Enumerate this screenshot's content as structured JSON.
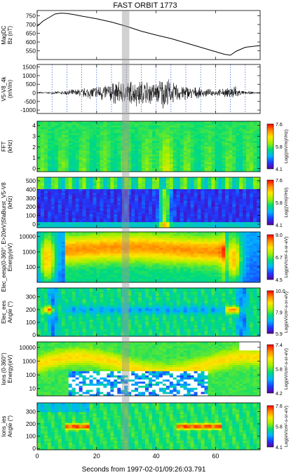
{
  "title": "FAST ORBIT 1773",
  "xaxis": {
    "label": "Seconds from 1997-02-01/09:26:03.791",
    "range": [
      0,
      75
    ],
    "ticks": [
      0,
      20,
      40,
      60
    ],
    "tick_labels": [
      "0",
      "20",
      "40",
      "60"
    ]
  },
  "highlight": {
    "x_range": [
      28.5,
      31
    ]
  },
  "colorbar_colors": [
    "#5a00a0",
    "#1e3cff",
    "#00b4ff",
    "#00dc78",
    "#a0f000",
    "#ffe600",
    "#ff8c00",
    "#ff0000"
  ],
  "chart_data": [
    {
      "type": "line",
      "ylabel": [
        "MagDC",
        "Bz (nT)"
      ],
      "ylim": [
        500,
        780
      ],
      "yticks": [
        550,
        600,
        650,
        700,
        750
      ],
      "ytick_labels": [
        "550",
        "600",
        "650",
        "700",
        "750"
      ],
      "x": [
        0,
        2,
        4,
        6,
        8,
        10,
        12,
        15,
        20,
        25,
        30,
        35,
        40,
        45,
        50,
        55,
        60,
        63,
        65,
        67,
        70,
        75
      ],
      "y": [
        690,
        720,
        740,
        760,
        765,
        763,
        758,
        748,
        733,
        714,
        690,
        662,
        640,
        620,
        595,
        570,
        545,
        530,
        525,
        548,
        570,
        580
      ]
    },
    {
      "type": "line",
      "ylabel": [
        "V5-V8_4k",
        "(mV/m)"
      ],
      "ylim": [
        -1200,
        1650
      ],
      "yticks": [
        -1000,
        -500,
        0,
        500,
        1000,
        1500
      ],
      "ytick_labels": [
        "-1000",
        "-500",
        "0",
        "500",
        "1000",
        "1500"
      ],
      "vlines": [
        5,
        10,
        15,
        20,
        25,
        30,
        35,
        40,
        45,
        50,
        55,
        60,
        65,
        70
      ],
      "envelope": {
        "x": [
          0,
          5,
          8,
          10,
          15,
          20,
          25,
          30,
          35,
          40,
          43,
          45,
          50,
          55,
          60,
          65,
          66,
          68,
          70,
          75
        ],
        "amplitude": [
          60,
          80,
          120,
          180,
          300,
          500,
          700,
          800,
          900,
          700,
          1200,
          700,
          500,
          300,
          200,
          350,
          700,
          200,
          100,
          60
        ]
      }
    },
    {
      "type": "heatmap",
      "ylabel": [
        "FFT",
        "(kHz)"
      ],
      "ylim": [
        -0.3,
        4.4
      ],
      "yticks": [
        0,
        1,
        2,
        3,
        4
      ],
      "ytick_labels": [
        "0",
        "1",
        "2",
        "3",
        "4"
      ],
      "colorbar": {
        "label": "Log((mV/m)²/Hz)",
        "ticks": [
          "4.1",
          "5.8",
          "7.6"
        ]
      }
    },
    {
      "type": "heatmap",
      "ylabel": [
        "SfaBurst_V5-V8",
        "(kHz)"
      ],
      "ylim": [
        -40,
        540
      ],
      "yticks": [
        0,
        100,
        200,
        300,
        400,
        500
      ],
      "ytick_labels": [
        "0",
        "100",
        "200",
        "300",
        "400",
        "500"
      ],
      "colorbar": {
        "label": "Log((V/m)²/Hz)",
        "ticks": [
          "4.1",
          "5.8",
          "7.6"
        ]
      }
    },
    {
      "type": "heatmap",
      "ylabel": [
        "Elec_eesp(0-360°, E>20eV)",
        "Energy(eV)"
      ],
      "ylim": [
        10,
        20000
      ],
      "yscale": "log",
      "yticks": [
        100,
        1000,
        10000
      ],
      "ytick_labels": [
        "100",
        "1000",
        "10000"
      ],
      "colorbar": {
        "label": "Log(eV/cm²-s-sr-eV)",
        "ticks": [
          "4.5",
          "6.7",
          "9.0"
        ]
      }
    },
    {
      "type": "heatmap",
      "ylabel": [
        "Elec_ees",
        "Angle (°)"
      ],
      "ylim": [
        -10,
        370
      ],
      "yticks": [
        0,
        100,
        200,
        300
      ],
      "ytick_labels": [
        "0",
        "100",
        "200",
        "300"
      ],
      "colorbar": {
        "label": "Log(eV/cm²-s-sr-eV)",
        "ticks": [
          "5.9",
          "7.9",
          "10.0"
        ]
      }
    },
    {
      "type": "heatmap",
      "ylabel": [
        "Ions (0-360°)",
        "Energy(eV)"
      ],
      "ylim": [
        3,
        25000
      ],
      "yscale": "log",
      "yticks": [
        10,
        100,
        1000,
        10000
      ],
      "ytick_labels": [
        "10",
        "100",
        "1000",
        "10000"
      ],
      "colorbar": {
        "label": "Log(eV/cm²-s-sr-eV)",
        "ticks": [
          "4.2",
          "5.8",
          "7.4"
        ]
      }
    },
    {
      "type": "heatmap",
      "ylabel": [
        "Ions_ies",
        "Angle (°)"
      ],
      "ylim": [
        -10,
        370
      ],
      "yticks": [
        0,
        100,
        200,
        300
      ],
      "ytick_labels": [
        "0",
        "100",
        "200",
        "300"
      ],
      "colorbar": {
        "label": "Log(eV/cm²-s-sr-eV)",
        "ticks": [
          "4.1",
          "5.8",
          "7.6"
        ]
      }
    }
  ]
}
